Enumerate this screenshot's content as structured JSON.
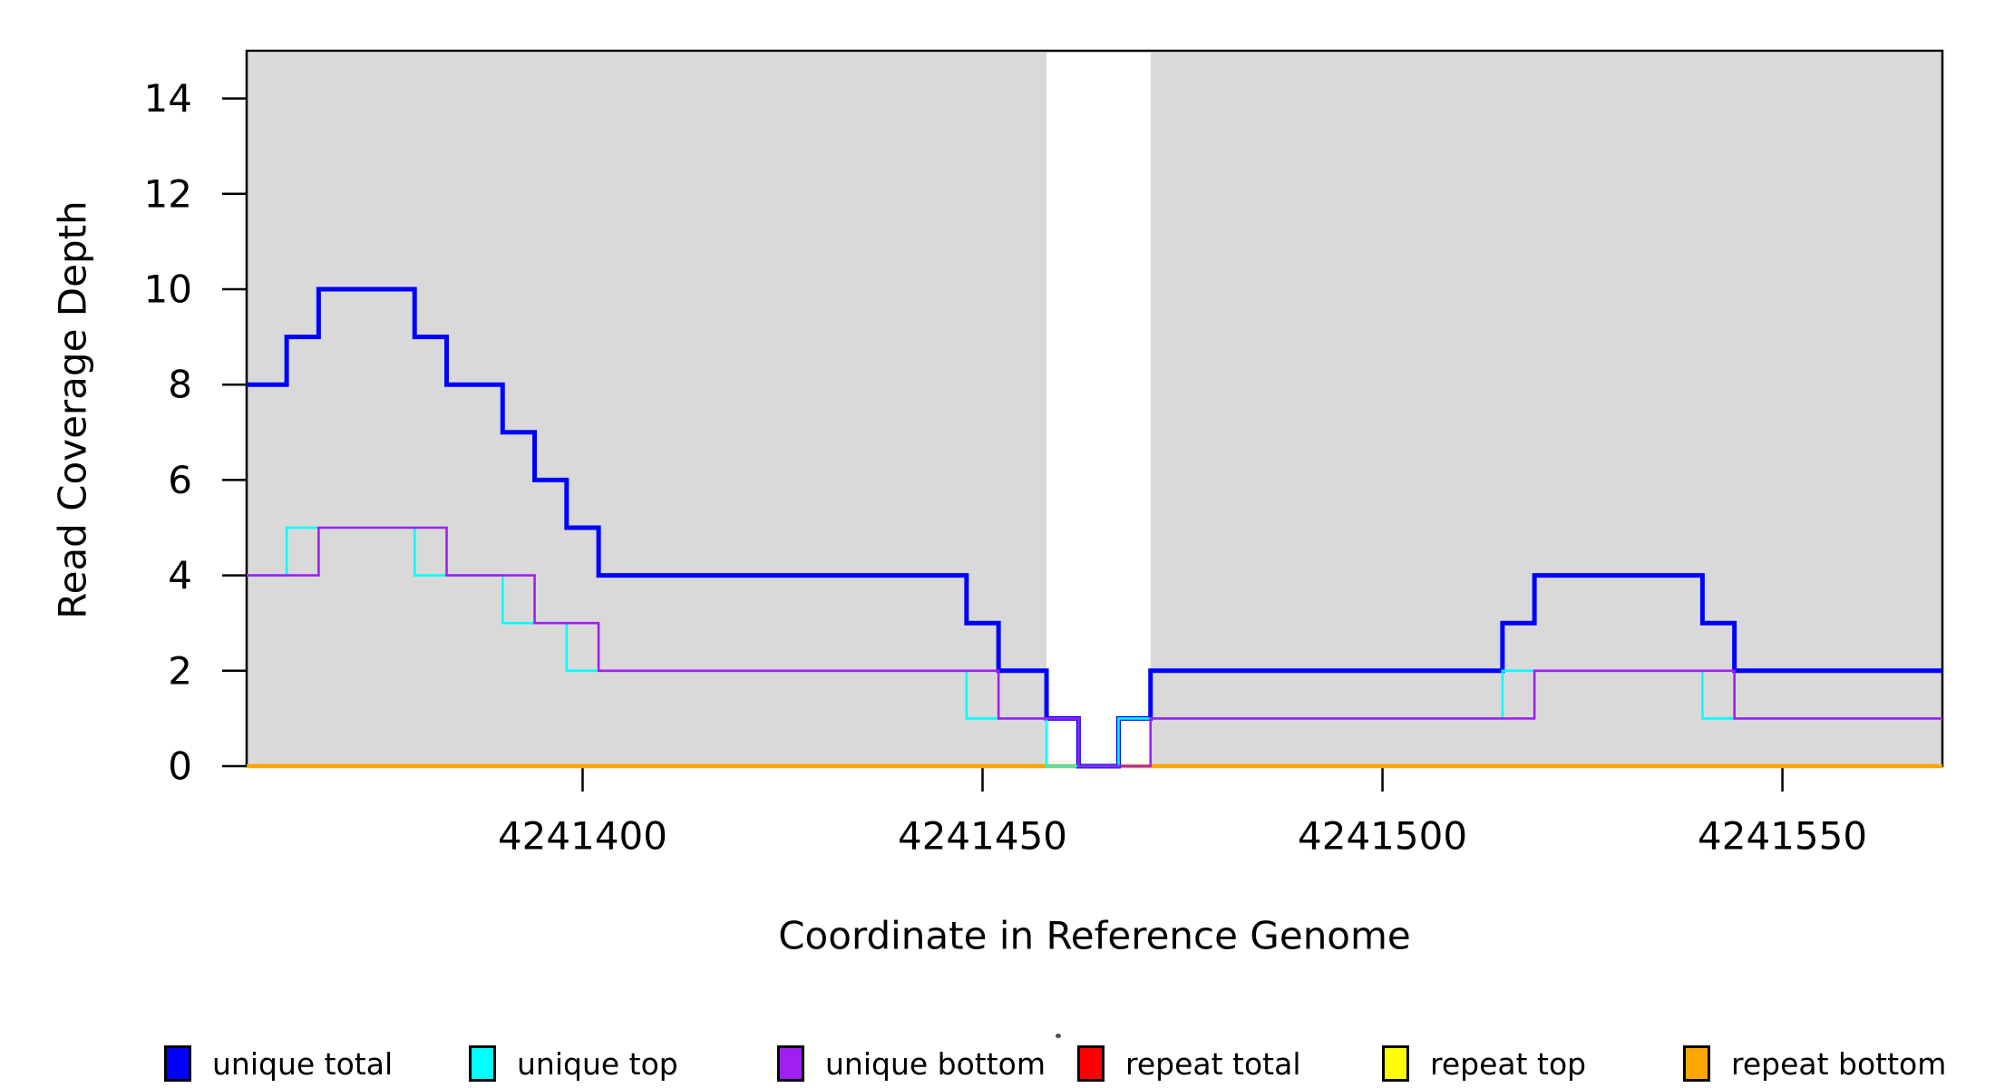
{
  "chart_data": {
    "type": "step",
    "title": "",
    "xlabel": "Coordinate in Reference Genome",
    "ylabel": "Read Coverage Depth",
    "xlim": [
      4241358,
      4241570
    ],
    "ylim": [
      0,
      15
    ],
    "xticks": [
      4241400,
      4241450,
      4241500,
      4241550
    ],
    "yticks": [
      0,
      2,
      4,
      6,
      8,
      10,
      12,
      14
    ],
    "grid": false,
    "background_bands": {
      "color": "#D9D9D9",
      "ranges": [
        [
          4241358,
          4241458
        ],
        [
          4241471,
          4241570
        ]
      ]
    },
    "series": [
      {
        "name": "repeat total",
        "color": "#FF0000",
        "width": 3,
        "points": [
          [
            4241358,
            0
          ]
        ]
      },
      {
        "name": "repeat top",
        "color": "#FFFF00",
        "width": 3,
        "points": [
          [
            4241358,
            0
          ]
        ]
      },
      {
        "name": "repeat bottom",
        "color": "#FFA500",
        "width": 4.5,
        "points": [
          [
            4241358,
            0
          ]
        ]
      },
      {
        "name": "unique total",
        "color": "#0000FF",
        "width": 5,
        "points": [
          [
            4241358,
            8
          ],
          [
            4241363,
            9
          ],
          [
            4241367,
            10
          ],
          [
            4241379,
            9
          ],
          [
            4241383,
            8
          ],
          [
            4241390,
            7
          ],
          [
            4241394,
            6
          ],
          [
            4241398,
            5
          ],
          [
            4241402,
            4
          ],
          [
            4241448,
            3
          ],
          [
            4241452,
            2
          ],
          [
            4241458,
            1
          ],
          [
            4241462,
            0
          ],
          [
            4241467,
            1
          ],
          [
            4241471,
            2
          ],
          [
            4241515,
            3
          ],
          [
            4241519,
            4
          ],
          [
            4241540,
            3
          ],
          [
            4241544,
            2
          ]
        ]
      },
      {
        "name": "unique top",
        "color": "#00FFFF",
        "width": 2.6,
        "points": [
          [
            4241358,
            4
          ],
          [
            4241363,
            5
          ],
          [
            4241379,
            4
          ],
          [
            4241390,
            3
          ],
          [
            4241398,
            2
          ],
          [
            4241448,
            1
          ],
          [
            4241458,
            0
          ],
          [
            4241467,
            1
          ],
          [
            4241515,
            2
          ],
          [
            4241540,
            1
          ]
        ]
      },
      {
        "name": "unique bottom",
        "color": "#A020F0",
        "width": 2.6,
        "points": [
          [
            4241358,
            4
          ],
          [
            4241367,
            5
          ],
          [
            4241383,
            4
          ],
          [
            4241394,
            3
          ],
          [
            4241402,
            2
          ],
          [
            4241452,
            1
          ],
          [
            4241462,
            0
          ],
          [
            4241471,
            1
          ],
          [
            4241519,
            2
          ],
          [
            4241544,
            1
          ]
        ]
      }
    ],
    "legend": {
      "position": "bottom",
      "items": [
        {
          "label": "unique total",
          "color": "#0000FF"
        },
        {
          "label": "unique top",
          "color": "#00FFFF"
        },
        {
          "label": "unique bottom",
          "color": "#A020F0"
        },
        {
          "label": "repeat total",
          "color": "#FF0000"
        },
        {
          "label": "repeat top",
          "color": "#FFFF00"
        },
        {
          "label": "repeat bottom",
          "color": "#FFA500"
        }
      ]
    }
  }
}
